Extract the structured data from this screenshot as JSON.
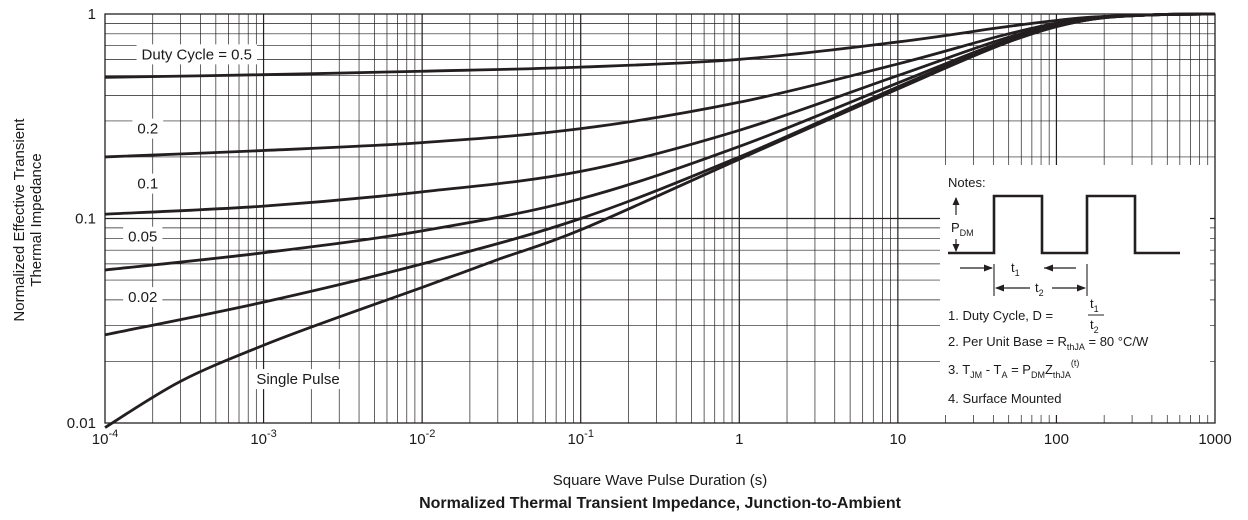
{
  "chart_data": {
    "type": "line",
    "title": "Normalized Thermal Transient Impedance, Junction-to-Ambient",
    "xlabel": "Square Wave Pulse Duration (s)",
    "ylabel_line1": "Normalized Effective Transient",
    "ylabel_line2": "Thermal Impedance",
    "x_scale": "log",
    "y_scale": "log",
    "xlim": [
      0.0001,
      1000
    ],
    "ylim": [
      0.01,
      1
    ],
    "grid": true,
    "x_ticks": [
      {
        "value": 0.0001,
        "base": "10",
        "exp": "-4"
      },
      {
        "value": 0.001,
        "base": "10",
        "exp": "-3"
      },
      {
        "value": 0.01,
        "base": "10",
        "exp": "-2"
      },
      {
        "value": 0.1,
        "base": "10",
        "exp": "-1"
      },
      {
        "value": 1,
        "base": "1",
        "exp": ""
      },
      {
        "value": 10,
        "base": "10",
        "exp": ""
      },
      {
        "value": 100,
        "base": "100",
        "exp": ""
      },
      {
        "value": 1000,
        "base": "1000",
        "exp": ""
      }
    ],
    "y_ticks": [
      {
        "value": 0.01,
        "label": "0.01"
      },
      {
        "value": 0.1,
        "label": "0.1"
      },
      {
        "value": 1,
        "label": "1"
      }
    ],
    "series": [
      {
        "name": "Duty Cycle = 0.5",
        "x": [
          0.0001,
          0.001,
          0.01,
          0.1,
          1,
          10,
          50,
          150,
          400,
          1000
        ],
        "y": [
          0.49,
          0.505,
          0.525,
          0.55,
          0.6,
          0.73,
          0.87,
          0.96,
          0.99,
          1.0
        ]
      },
      {
        "name": "0.2",
        "x": [
          0.0001,
          0.001,
          0.01,
          0.1,
          1,
          10,
          50,
          150,
          400,
          1000
        ],
        "y": [
          0.2,
          0.215,
          0.235,
          0.275,
          0.37,
          0.57,
          0.8,
          0.95,
          0.99,
          1.0
        ]
      },
      {
        "name": "0.1",
        "x": [
          0.0001,
          0.001,
          0.01,
          0.1,
          1,
          10,
          50,
          150,
          400,
          1000
        ],
        "y": [
          0.105,
          0.115,
          0.135,
          0.17,
          0.27,
          0.5,
          0.77,
          0.94,
          0.99,
          1.0
        ]
      },
      {
        "name": "0.05",
        "x": [
          0.0001,
          0.001,
          0.01,
          0.1,
          1,
          10,
          50,
          150,
          400,
          1000
        ],
        "y": [
          0.056,
          0.068,
          0.087,
          0.125,
          0.225,
          0.46,
          0.75,
          0.93,
          0.99,
          1.0
        ]
      },
      {
        "name": "0.02",
        "x": [
          0.0001,
          0.001,
          0.01,
          0.1,
          1,
          10,
          50,
          150,
          400,
          1000
        ],
        "y": [
          0.027,
          0.039,
          0.06,
          0.1,
          0.2,
          0.44,
          0.74,
          0.93,
          0.99,
          1.0
        ]
      },
      {
        "name": "Single Pulse",
        "x": [
          0.0001,
          0.0003,
          0.001,
          0.003,
          0.01,
          0.03,
          0.1,
          1,
          10,
          50,
          150,
          400,
          1000
        ],
        "y": [
          0.0095,
          0.016,
          0.024,
          0.033,
          0.046,
          0.063,
          0.088,
          0.195,
          0.43,
          0.73,
          0.93,
          0.99,
          1.0
        ]
      }
    ],
    "series_label_placement": [
      {
        "name": "Duty Cycle = 0.5",
        "x": 0.00017,
        "y": 0.6
      },
      {
        "name": "0.2",
        "x": 0.00016,
        "y": 0.26
      },
      {
        "name": "0.1",
        "x": 0.00016,
        "y": 0.14
      },
      {
        "name": "0.05",
        "x": 0.00014,
        "y": 0.077
      },
      {
        "name": "0.02",
        "x": 0.00014,
        "y": 0.039
      },
      {
        "name": "Single Pulse",
        "x": 0.0009,
        "y": 0.0155
      }
    ]
  },
  "notes": {
    "heading": "Notes:",
    "pdm_main": "P",
    "pdm_sub": "DM",
    "t1_main": "t",
    "t1_sub": "1",
    "t2_main": "t",
    "t2_sub": "2",
    "note1_prefix": "1. Duty Cycle, D = ",
    "note1_num_main": "t",
    "note1_num_sub": "1",
    "note1_den_main": "t",
    "note1_den_sub": "2",
    "note2_prefix": "2. Per Unit Base = R",
    "note2_sub": "thJA",
    "note2_suffix": " = 80 °C/W",
    "note3_a": "3. T",
    "note3_a_sub": "JM",
    "note3_b": " - T",
    "note3_b_sub": "A",
    "note3_c": " = P",
    "note3_c_sub": "DM",
    "note3_d": "Z",
    "note3_d_sub": "thJA",
    "note3_sup": "(t)",
    "note4": "4. Surface Mounted"
  },
  "colors": {
    "line": "#231f20",
    "grid": "#231f20",
    "text": "#1a1a1a",
    "background": "#ffffff"
  }
}
